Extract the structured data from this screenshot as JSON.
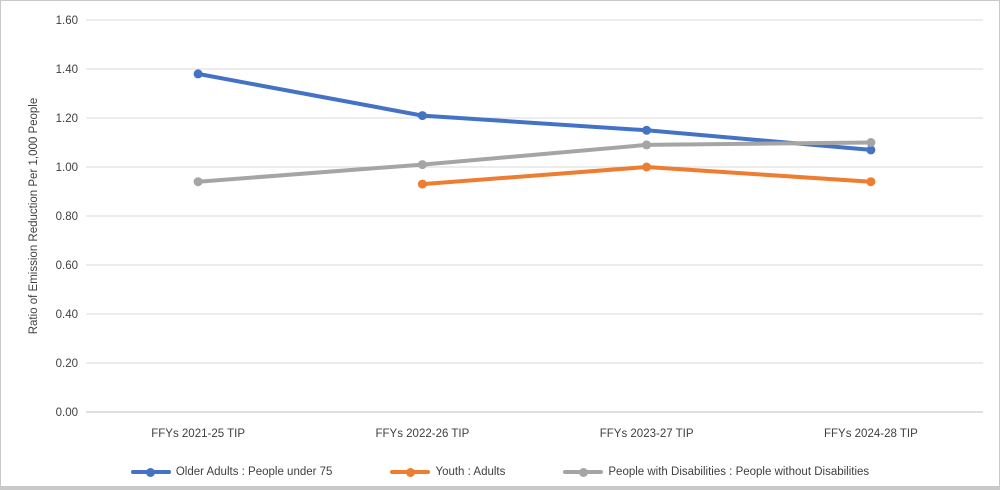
{
  "chart_data": {
    "type": "line",
    "title": "",
    "xlabel": "",
    "ylabel": "Ratio of Emission Reduction Per 1,000 People",
    "categories": [
      "FFYs 2021-25 TIP",
      "FFYs 2022-26 TIP",
      "FFYs 2023-27 TIP",
      "FFYs 2024-28 TIP"
    ],
    "series": [
      {
        "name": "Older Adults : People under 75",
        "color": "#4472C4",
        "values": [
          1.38,
          1.21,
          1.15,
          1.07
        ]
      },
      {
        "name": "Youth : Adults",
        "color": "#ED7D31",
        "values": [
          null,
          0.93,
          1.0,
          0.94
        ]
      },
      {
        "name": "People with Disabilities : People without Disabilities",
        "color": "#A5A5A5",
        "values": [
          0.94,
          1.01,
          1.09,
          1.1
        ]
      }
    ],
    "ylim": [
      0.0,
      1.6
    ],
    "y_tick_labels": [
      "0.00",
      "0.20",
      "0.40",
      "0.60",
      "0.80",
      "1.00",
      "1.20",
      "1.40",
      "1.60"
    ],
    "grid": true,
    "legend_position": "bottom",
    "colors": {
      "gridline": "#D9D9D9",
      "axis_line": "#BFBFBF",
      "text": "#404040"
    }
  }
}
